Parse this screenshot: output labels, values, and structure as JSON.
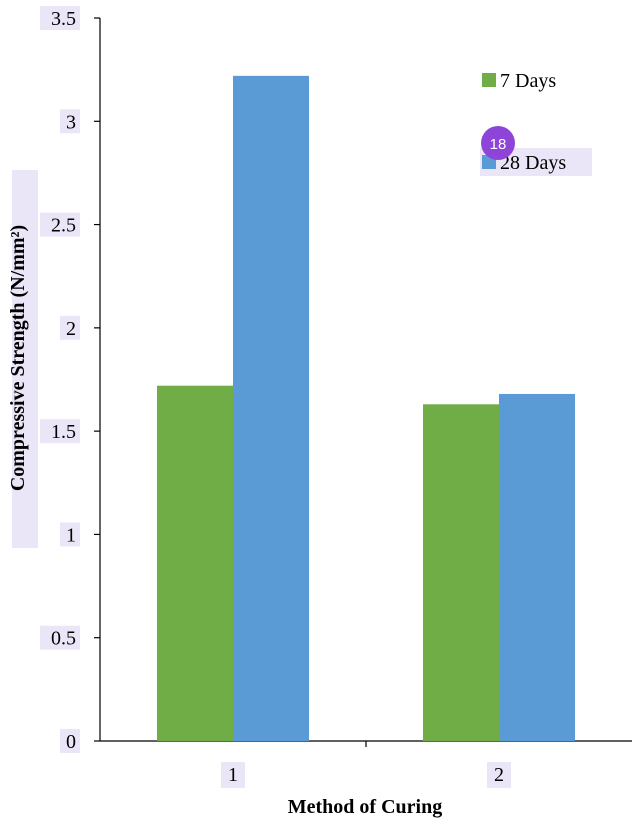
{
  "chart_data": {
    "type": "bar",
    "categories": [
      "1",
      "2"
    ],
    "series": [
      {
        "name": "7 Days",
        "values": [
          1.72,
          1.63
        ],
        "color": "#70ad47"
      },
      {
        "name": "28 Days",
        "values": [
          3.22,
          1.68
        ],
        "color": "#5b9bd5"
      }
    ],
    "xlabel": "Method of Curing",
    "ylabel": "Compressive Strength (N/mm²)",
    "ylim": [
      0,
      3.5
    ],
    "yticks": [
      "0",
      "0.5",
      "1",
      "1.5",
      "2",
      "2.5",
      "3",
      "3.5"
    ],
    "grid": false,
    "legend_position": "top-right"
  },
  "overlay_badge": {
    "label": "18",
    "color": "#8e44d8"
  }
}
